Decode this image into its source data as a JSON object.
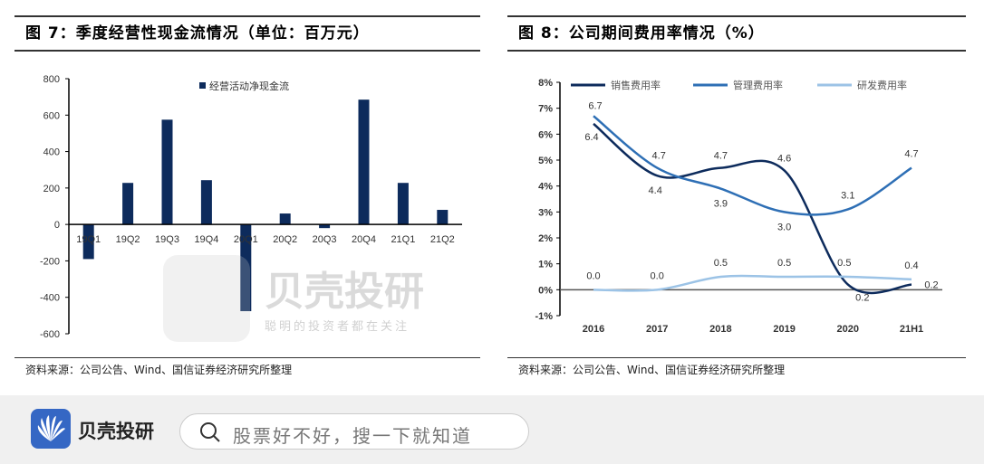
{
  "chart_data": [
    {
      "type": "bar",
      "title": "图 7：季度经营性现金流情况（单位：百万元）",
      "categories": [
        "19Q1",
        "19Q2",
        "19Q3",
        "19Q4",
        "20Q1",
        "20Q2",
        "20Q3",
        "20Q4",
        "21Q1",
        "21Q2"
      ],
      "series": [
        {
          "name": "经营活动净现金流",
          "color": "#0d2b5c",
          "values": [
            -190,
            228,
            575,
            243,
            -476,
            60,
            -20,
            685,
            228,
            80
          ]
        }
      ],
      "yticks": [
        "800",
        "600",
        "400",
        "200",
        "0",
        "-200",
        "-400",
        "-600"
      ],
      "ylim": [
        -600,
        800
      ],
      "legend": "top-center",
      "source": "资料来源：公司公告、Wind、国信证券经济研究所整理"
    },
    {
      "type": "line",
      "title": "图 8：公司期间费用率情况（%）",
      "categories": [
        "2016",
        "2017",
        "2018",
        "2019",
        "2020",
        "21H1"
      ],
      "series": [
        {
          "name": "销售费用率",
          "color": "#0d2b5c",
          "values": [
            6.4,
            4.4,
            4.7,
            4.6,
            0.2,
            0.2
          ],
          "labels": [
            "6.4",
            "4.4",
            "4.7",
            "4.6",
            "0.2",
            "0.2"
          ]
        },
        {
          "name": "管理费用率",
          "color": "#2e6fb5",
          "values": [
            6.7,
            4.7,
            3.9,
            3.0,
            3.1,
            4.7
          ],
          "labels": [
            "6.7",
            "4.7",
            "3.9",
            "3.0",
            "3.1",
            "4.7"
          ]
        },
        {
          "name": "研发费用率",
          "color": "#9cc3e6",
          "values": [
            0.0,
            0.0,
            0.5,
            0.5,
            0.5,
            0.4
          ],
          "labels": [
            "0.0",
            "0.0",
            "0.5",
            "0.5",
            "0.5",
            "0.4"
          ]
        }
      ],
      "yticks": [
        "8%",
        "7%",
        "6%",
        "5%",
        "4%",
        "3%",
        "2%",
        "1%",
        "0%",
        "-1%"
      ],
      "ylim": [
        -1,
        8
      ],
      "legend": "top",
      "source": "资料来源：公司公告、Wind、国信证券经济研究所整理"
    }
  ],
  "watermark": {
    "text": "贝壳投研",
    "sub": "聪明的投资者都在关注"
  },
  "footer": {
    "brand": "贝壳投研",
    "search_placeholder": "股票好不好，搜一下就知道"
  }
}
